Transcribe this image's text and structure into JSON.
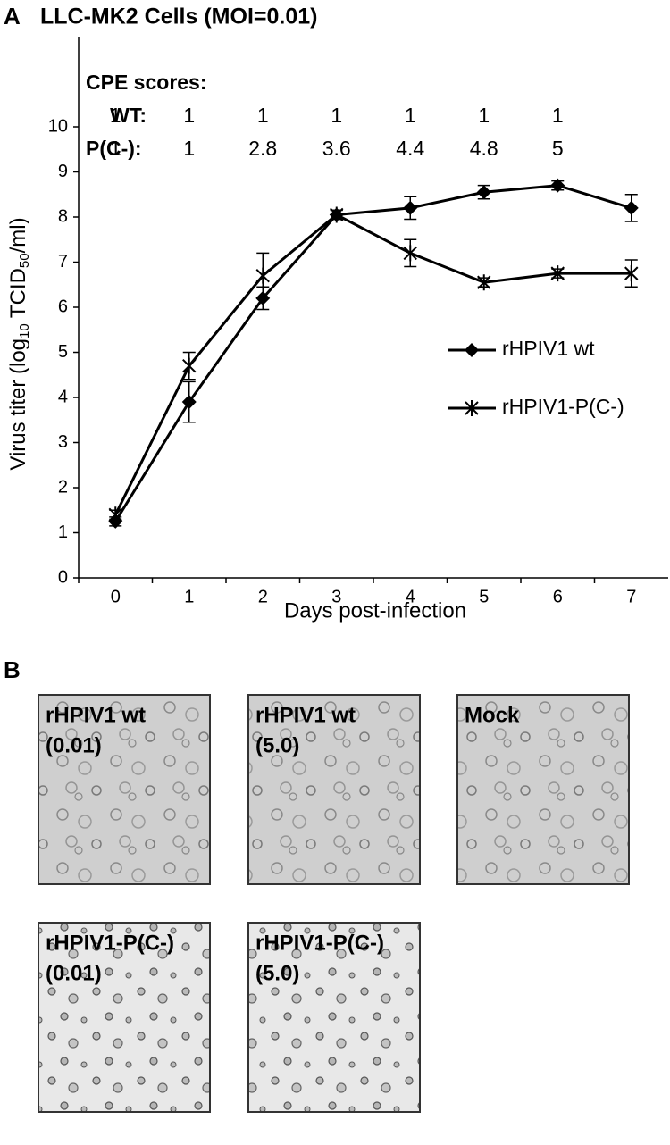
{
  "panel_a": {
    "label": "A"
  },
  "chart_data": {
    "type": "line",
    "title": "LLC-MK2 Cells (MOI=0.01)",
    "y_label": {
      "parts": [
        "Virus titer (log",
        "10",
        " TCID",
        "50",
        "/ml)"
      ]
    },
    "x_label": "Days post-infection",
    "categories": [
      "0",
      "1",
      "2",
      "3",
      "4",
      "5",
      "6",
      "7"
    ],
    "series": [
      {
        "name": "rHPIV1 wt",
        "color": "#000000",
        "marker": "diamond",
        "values": [
          1.25,
          3.9,
          6.2,
          8.05,
          8.2,
          8.55,
          8.7,
          8.2
        ],
        "errors": [
          0.1,
          0.45,
          0.25,
          0.1,
          0.25,
          0.15,
          0.1,
          0.3
        ]
      },
      {
        "name": "rHPIV1-P(C-)",
        "color": "#000000",
        "marker": "asterisk",
        "values": [
          1.4,
          4.7,
          6.7,
          8.05,
          7.2,
          6.55,
          6.75,
          6.75
        ],
        "errors": [
          0.1,
          0.3,
          0.5,
          0.1,
          0.3,
          0.1,
          0.1,
          0.3
        ]
      }
    ],
    "ylim": [
      0,
      12
    ],
    "yticks": [
      0,
      1,
      2,
      3,
      4,
      5,
      6,
      7,
      8,
      9,
      10
    ],
    "cpe_scores": {
      "heading": "CPE scores:",
      "rows": [
        {
          "label": "WT:",
          "values": [
            1,
            1,
            1,
            1,
            1,
            1,
            1
          ]
        },
        {
          "label": "P(C-):",
          "values": [
            1,
            1,
            2.8,
            3.6,
            4.4,
            4.8,
            5
          ]
        }
      ]
    }
  },
  "panel_b": {
    "label": "B",
    "images": [
      {
        "lines": [
          "rHPIV1 wt",
          "(0.01)"
        ]
      },
      {
        "lines": [
          "rHPIV1 wt",
          "(5.0)"
        ]
      },
      {
        "lines": [
          "Mock"
        ]
      },
      {
        "lines": [
          "rHPIV1-P(C-)",
          "(0.01)"
        ]
      },
      {
        "lines": [
          "rHPIV1-P(C-)",
          "(5.0)"
        ]
      }
    ]
  }
}
